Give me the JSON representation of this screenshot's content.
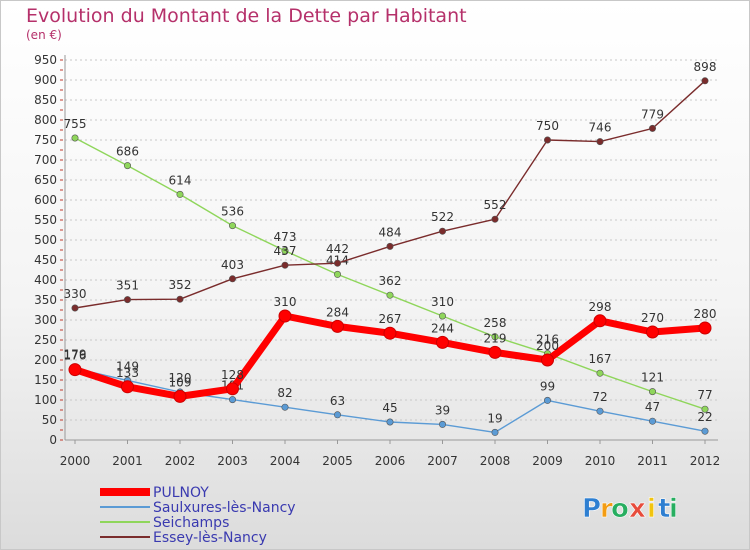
{
  "chart_data": {
    "type": "line",
    "title": "Evolution du Montant de la Dette par Habitant",
    "subtitle": "(en €)",
    "categories": [
      "2000",
      "2001",
      "2002",
      "2003",
      "2004",
      "2005",
      "2006",
      "2007",
      "2008",
      "2009",
      "2010",
      "2011",
      "2012"
    ],
    "ylim": [
      0,
      950
    ],
    "yticks": [
      0,
      50,
      100,
      150,
      200,
      250,
      300,
      350,
      400,
      450,
      500,
      550,
      600,
      650,
      700,
      750,
      800,
      850,
      900,
      950
    ],
    "grid": "horizontal-dashed",
    "legend_position": "bottom-left",
    "series": [
      {
        "name": "PULNOY",
        "color": "#ff0000",
        "values": [
          176,
          133,
          109,
          128,
          310,
          284,
          267,
          244,
          219,
          200,
          298,
          270,
          280
        ]
      },
      {
        "name": "Saulxures-lès-Nancy",
        "color": "#5b9bd5",
        "values": [
          179,
          149,
          120,
          101,
          82,
          63,
          45,
          39,
          19,
          99,
          72,
          47,
          22
        ]
      },
      {
        "name": "Seichamps",
        "color": "#8fd65b",
        "values": [
          755,
          686,
          614,
          536,
          473,
          414,
          362,
          310,
          258,
          216,
          167,
          121,
          77
        ]
      },
      {
        "name": "Essey-lès-Nancy",
        "color": "#7a2c2c",
        "values": [
          330,
          351,
          352,
          403,
          437,
          442,
          484,
          522,
          552,
          750,
          746,
          779,
          898
        ]
      }
    ]
  },
  "logo": {
    "letters": [
      "P",
      "r",
      "o",
      "x",
      "i",
      "t",
      "i"
    ],
    "colors": [
      "#2e7fd1",
      "#f39c12",
      "#27ae60",
      "#e74c3c",
      "#f1c40f",
      "#2e7fd1",
      "#27ae60"
    ]
  }
}
